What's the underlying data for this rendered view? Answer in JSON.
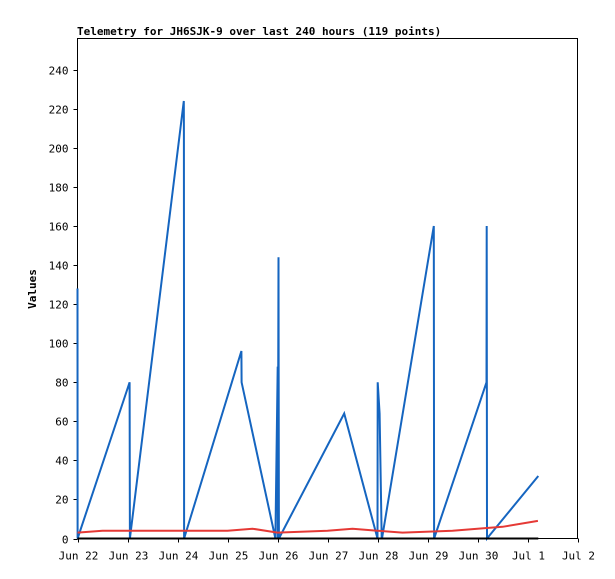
{
  "chart_data": {
    "type": "line",
    "title": "Telemetry for JH6SJK-9 over last 240 hours (119 points)",
    "xlabel": "",
    "ylabel": "Values",
    "ylim": [
      0,
      256
    ],
    "yticks": [
      0,
      20,
      40,
      60,
      80,
      100,
      120,
      140,
      160,
      180,
      200,
      220,
      240
    ],
    "xlim": [
      "2022-06-22T00:00",
      "2022-07-02T00:00"
    ],
    "xticks": [
      {
        "at": "2022-06-22T00:00",
        "label": "Jun 22"
      },
      {
        "at": "2022-06-23T00:00",
        "label": "Jun 23"
      },
      {
        "at": "2022-06-24T00:00",
        "label": "Jun 24"
      },
      {
        "at": "2022-06-25T00:00",
        "label": "Jun 25"
      },
      {
        "at": "2022-06-26T00:00",
        "label": "Jun 26"
      },
      {
        "at": "2022-06-27T00:00",
        "label": "Jun 27"
      },
      {
        "at": "2022-06-28T00:00",
        "label": "Jun 28"
      },
      {
        "at": "2022-06-29T00:00",
        "label": "Jun 29"
      },
      {
        "at": "2022-06-30T00:00",
        "label": "Jun 30"
      },
      {
        "at": "2022-07-01T00:00",
        "label": "Jul 1"
      },
      {
        "at": "2022-07-02T00:00",
        "label": "Jul 2"
      }
    ],
    "grid": false,
    "legend": "none",
    "series": [
      {
        "color": "#1565c0",
        "points": [
          [
            "2022-06-22T00:00",
            128
          ],
          [
            "2022-06-22T00:02",
            0
          ],
          [
            "2022-06-23T01:00",
            80
          ],
          [
            "2022-06-23T01:10",
            0
          ],
          [
            "2022-06-24T03:00",
            224
          ],
          [
            "2022-06-24T03:05",
            208
          ],
          [
            "2022-06-24T03:10",
            0
          ],
          [
            "2022-06-25T06:40",
            96
          ],
          [
            "2022-06-25T06:45",
            80
          ],
          [
            "2022-06-25T23:00",
            0
          ],
          [
            "2022-06-26T00:05",
            88
          ],
          [
            "2022-06-26T00:10",
            0
          ],
          [
            "2022-06-26T00:30",
            144
          ],
          [
            "2022-06-26T00:40",
            0
          ],
          [
            "2022-06-27T08:00",
            64
          ],
          [
            "2022-06-28T00:00",
            0
          ],
          [
            "2022-06-28T00:05",
            80
          ],
          [
            "2022-06-28T01:00",
            64
          ],
          [
            "2022-06-28T02:00",
            0
          ],
          [
            "2022-06-28T02:10",
            0
          ],
          [
            "2022-06-29T03:00",
            160
          ],
          [
            "2022-06-29T03:10",
            0
          ],
          [
            "2022-06-30T04:20",
            80
          ],
          [
            "2022-06-30T04:25",
            160
          ],
          [
            "2022-06-30T04:35",
            0
          ],
          [
            "2022-07-01T05:10",
            32
          ]
        ]
      },
      {
        "color": "#e53935",
        "points": [
          [
            "2022-06-22T00:00",
            3
          ],
          [
            "2022-06-22T12:00",
            4
          ],
          [
            "2022-06-23T00:00",
            4
          ],
          [
            "2022-06-24T00:00",
            4
          ],
          [
            "2022-06-25T00:00",
            4
          ],
          [
            "2022-06-25T12:00",
            5
          ],
          [
            "2022-06-26T00:00",
            3
          ],
          [
            "2022-06-27T00:00",
            4
          ],
          [
            "2022-06-27T12:00",
            5
          ],
          [
            "2022-06-28T00:00",
            4
          ],
          [
            "2022-06-28T12:00",
            3
          ],
          [
            "2022-06-29T12:00",
            4
          ],
          [
            "2022-06-30T00:00",
            5
          ],
          [
            "2022-06-30T12:00",
            6
          ],
          [
            "2022-07-01T05:00",
            9
          ]
        ]
      },
      {
        "color": "#000000",
        "points": [
          [
            "2022-06-22T00:00",
            0
          ],
          [
            "2022-07-01T05:10",
            0
          ]
        ]
      }
    ]
  }
}
